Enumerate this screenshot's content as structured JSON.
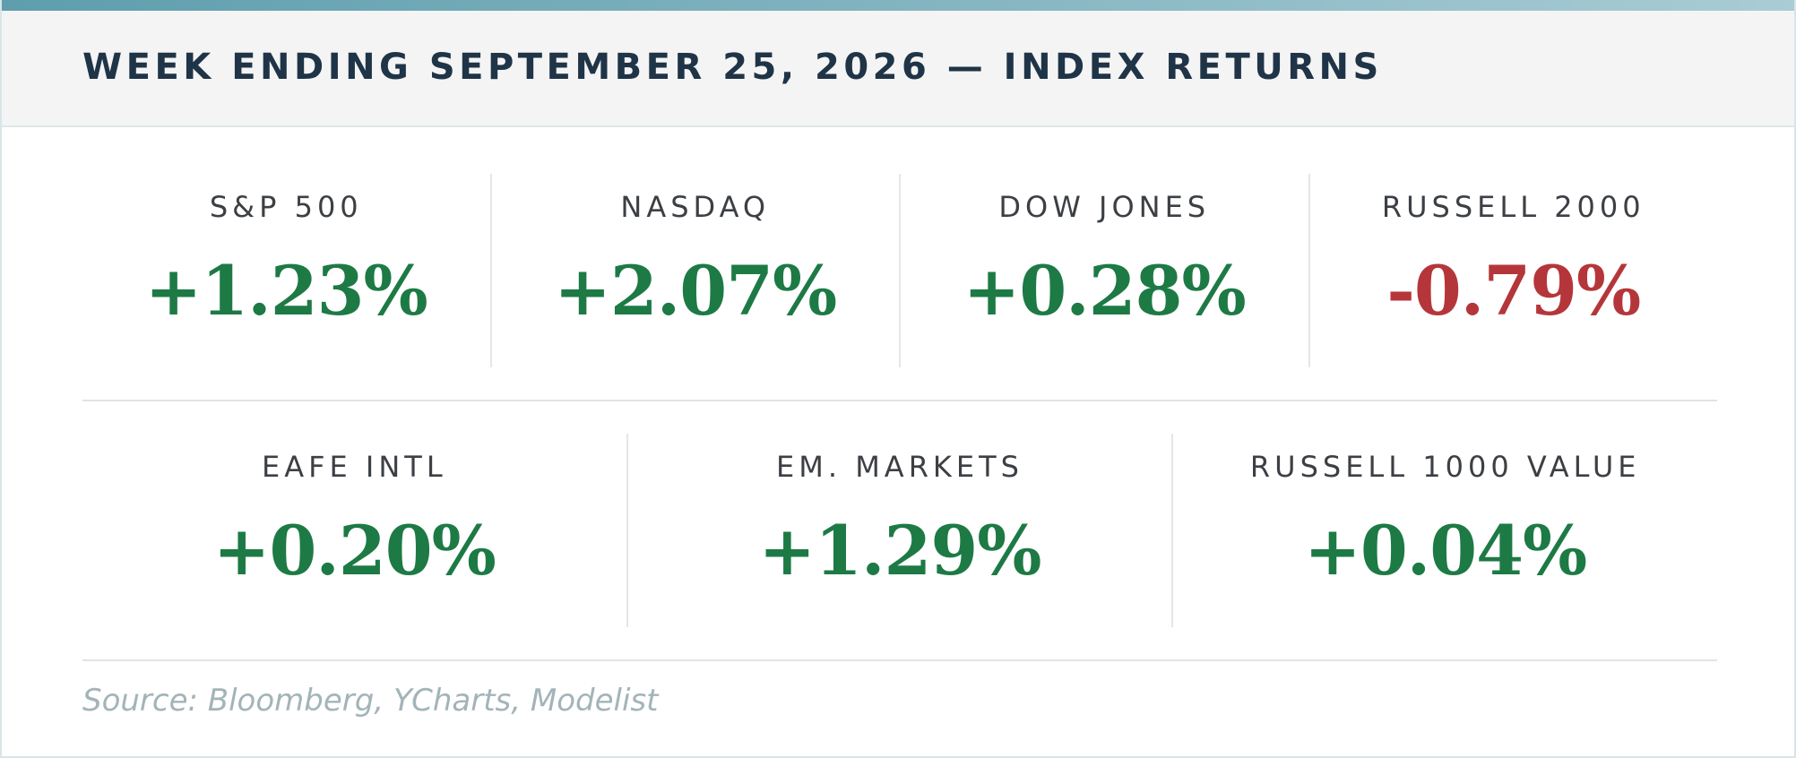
{
  "header": {
    "title": "WEEK ENDING SEPTEMBER 25, 2026 — INDEX RETURNS"
  },
  "rows": [
    {
      "cells": [
        {
          "label": "S&P 500",
          "value": "+1.23%",
          "direction": "positive"
        },
        {
          "label": "NASDAQ",
          "value": "+2.07%",
          "direction": "positive"
        },
        {
          "label": "DOW JONES",
          "value": "+0.28%",
          "direction": "positive"
        },
        {
          "label": "RUSSELL 2000",
          "value": "-0.79%",
          "direction": "negative"
        }
      ]
    },
    {
      "cells": [
        {
          "label": "EAFE INTL",
          "value": "+0.20%",
          "direction": "positive"
        },
        {
          "label": "EM. MARKETS",
          "value": "+1.29%",
          "direction": "positive"
        },
        {
          "label": "RUSSELL 1000 VALUE",
          "value": "+0.04%",
          "direction": "positive"
        }
      ]
    }
  ],
  "source": "Source: Bloomberg, YCharts, Modelist",
  "colors": {
    "accent": "#5e9ead",
    "positive": "#1d7a45",
    "negative": "#b5363a",
    "title": "#1f3447"
  }
}
